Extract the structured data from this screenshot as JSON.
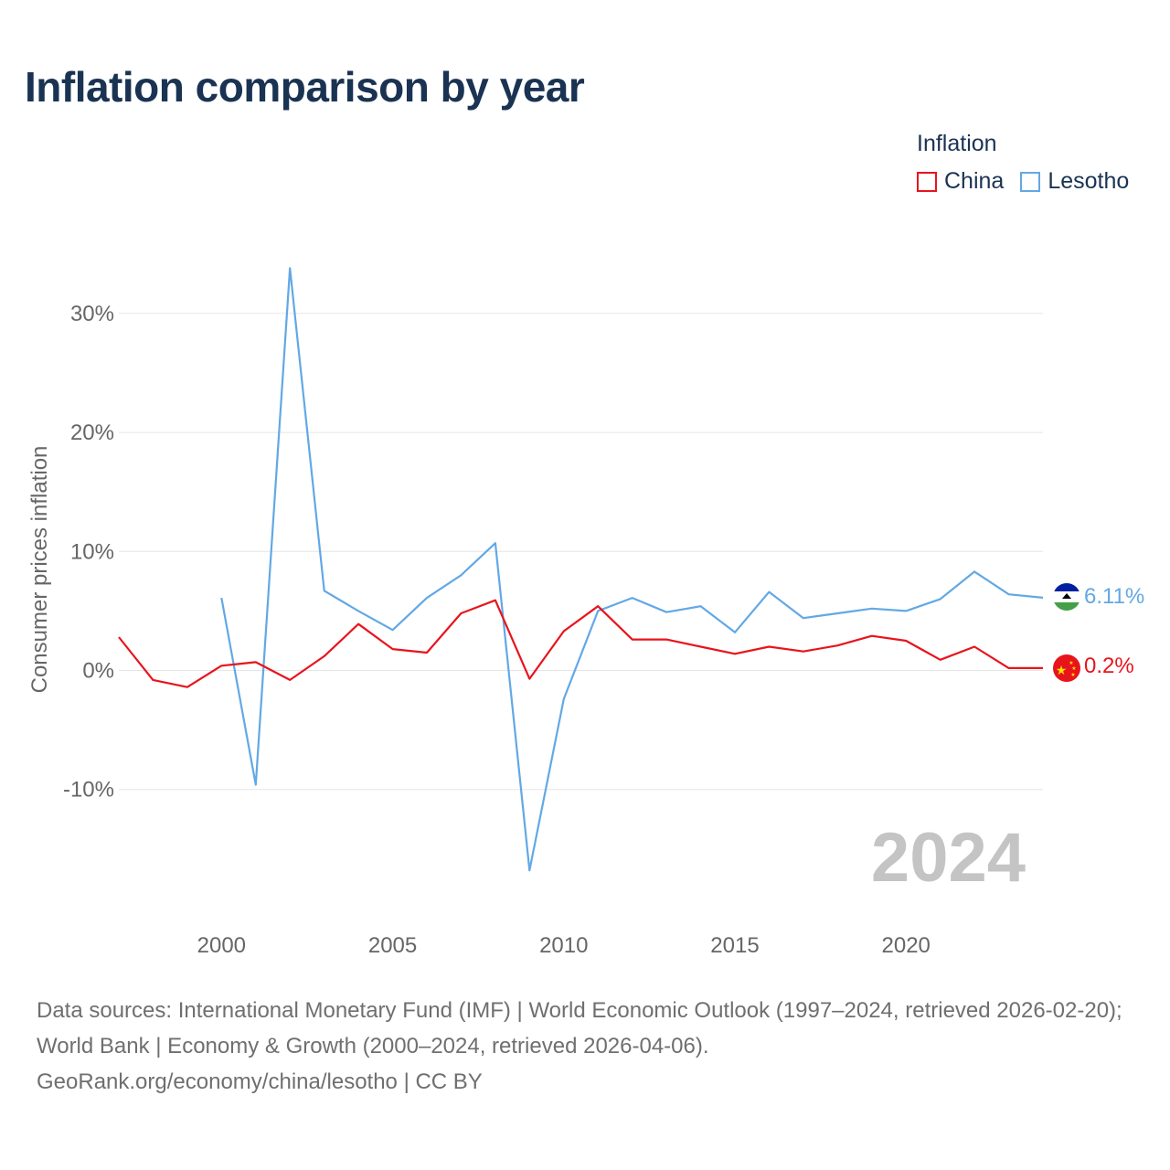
{
  "title": "Inflation comparison by year",
  "legend": {
    "title": "Inflation",
    "items": [
      {
        "name": "China",
        "color": "#e8141c"
      },
      {
        "name": "Lesotho",
        "color": "#62a8e5"
      }
    ]
  },
  "year_watermark": "2024",
  "footer": {
    "sources": "Data sources: International Monetary Fund (IMF) | World Economic Outlook (1997–2024, retrieved 2026-02-20); World Bank | Economy & Growth (2000–2024, retrieved 2026-04-06).",
    "attribution": "GeoRank.org/economy/china/lesotho | CC BY"
  },
  "chart_data": {
    "type": "line",
    "title": "Inflation comparison by year",
    "xlabel": "",
    "ylabel": "Consumer prices inflation",
    "xlim": [
      1997,
      2024
    ],
    "ylim": [
      -20,
      35
    ],
    "x_ticks": [
      2000,
      2005,
      2010,
      2015,
      2020
    ],
    "y_ticks": [
      -10,
      0,
      10,
      20,
      30
    ],
    "y_tick_labels": [
      "-10%",
      "0%",
      "10%",
      "20%",
      "30%"
    ],
    "grid": true,
    "legend_position": "top-right",
    "series": [
      {
        "name": "China",
        "color": "#e8141c",
        "end_label": "0.2%",
        "points": [
          [
            1997,
            2.8
          ],
          [
            1998,
            -0.8
          ],
          [
            1999,
            -1.4
          ],
          [
            2000,
            0.4
          ],
          [
            2001,
            0.7
          ],
          [
            2002,
            -0.8
          ],
          [
            2003,
            1.2
          ],
          [
            2004,
            3.9
          ],
          [
            2005,
            1.8
          ],
          [
            2006,
            1.5
          ],
          [
            2007,
            4.8
          ],
          [
            2008,
            5.9
          ],
          [
            2009,
            -0.7
          ],
          [
            2010,
            3.3
          ],
          [
            2011,
            5.4
          ],
          [
            2012,
            2.6
          ],
          [
            2013,
            2.6
          ],
          [
            2014,
            2.0
          ],
          [
            2015,
            1.4
          ],
          [
            2016,
            2.0
          ],
          [
            2017,
            1.6
          ],
          [
            2018,
            2.1
          ],
          [
            2019,
            2.9
          ],
          [
            2020,
            2.5
          ],
          [
            2021,
            0.9
          ],
          [
            2022,
            2.0
          ],
          [
            2023,
            0.2
          ],
          [
            2024,
            0.2
          ]
        ]
      },
      {
        "name": "Lesotho",
        "color": "#62a8e5",
        "end_label": "6.11%",
        "points": [
          [
            2000,
            6.1
          ],
          [
            2001,
            -9.6
          ],
          [
            2002,
            33.8
          ],
          [
            2003,
            6.7
          ],
          [
            2004,
            5.0
          ],
          [
            2005,
            3.4
          ],
          [
            2006,
            6.1
          ],
          [
            2007,
            8.0
          ],
          [
            2008,
            10.7
          ],
          [
            2009,
            -16.8
          ],
          [
            2010,
            -2.4
          ],
          [
            2011,
            5.0
          ],
          [
            2012,
            6.1
          ],
          [
            2013,
            4.9
          ],
          [
            2014,
            5.4
          ],
          [
            2015,
            3.2
          ],
          [
            2016,
            6.6
          ],
          [
            2017,
            4.4
          ],
          [
            2018,
            4.8
          ],
          [
            2019,
            5.2
          ],
          [
            2020,
            5.0
          ],
          [
            2021,
            6.0
          ],
          [
            2022,
            8.3
          ],
          [
            2023,
            6.4
          ],
          [
            2024,
            6.11
          ]
        ]
      }
    ]
  }
}
